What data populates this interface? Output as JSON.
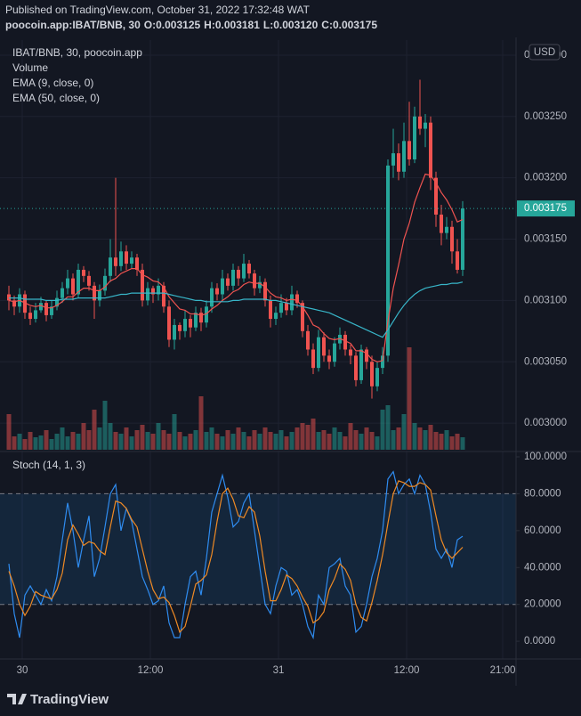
{
  "header": {
    "published": "Published on TradingView.com, October 31, 2022 17:32:48 WAT",
    "symbol": "poocoin.app:IBAT/BNB, 30",
    "ohlc": [
      "O:0.003125",
      "H:0.003181",
      "L:0.003120",
      "C:0.003175"
    ]
  },
  "chart_data": [
    {
      "type": "candlestick",
      "title": "IBAT/BNB, 30, poocoin.app",
      "currency": "USD",
      "up_color": "#26a69a",
      "down_color": "#ef5350",
      "grid": true,
      "xlim": [
        -1.6667,
        95
      ],
      "xticks": [
        {
          "value": 2.5,
          "label": "30"
        },
        {
          "value": 26.5,
          "label": "12:00"
        },
        {
          "value": 50.5,
          "label": "31"
        },
        {
          "value": 74.5,
          "label": "12:00"
        },
        {
          "value": 92.5,
          "label": "21:00"
        }
      ],
      "ylim": [
        0.0029783,
        0.0033123
      ],
      "yticks": [
        {
          "value": 0.003,
          "label": "0.003000"
        },
        {
          "value": 0.00305,
          "label": "0.003050"
        },
        {
          "value": 0.0031,
          "label": "0.003100"
        },
        {
          "value": 0.00315,
          "label": "0.003150"
        },
        {
          "value": 0.0032,
          "label": "0.003200"
        },
        {
          "value": 0.00325,
          "label": "0.003250"
        },
        {
          "value": 0.0033,
          "label": "0.003300"
        }
      ],
      "last_price_label": "0.003175",
      "candles": [
        [
          0.003105,
          0.003112,
          0.003092,
          0.0031
        ],
        [
          0.0031,
          0.003104,
          0.003088,
          0.003095
        ],
        [
          0.003095,
          0.00311,
          0.00309,
          0.003105
        ],
        [
          0.003105,
          0.003108,
          0.003085,
          0.00309
        ],
        [
          0.00309,
          0.003095,
          0.00308,
          0.003085
        ],
        [
          0.003085,
          0.003098,
          0.003082,
          0.003092
        ],
        [
          0.003092,
          0.003103,
          0.00309,
          0.003098
        ],
        [
          0.003098,
          0.0031,
          0.003083,
          0.003088
        ],
        [
          0.003088,
          0.0031,
          0.003085,
          0.003095
        ],
        [
          0.003095,
          0.003108,
          0.003092,
          0.003102
        ],
        [
          0.003102,
          0.003115,
          0.003098,
          0.00311
        ],
        [
          0.00311,
          0.003125,
          0.003105,
          0.003118
        ],
        [
          0.003118,
          0.003122,
          0.0031,
          0.003105
        ],
        [
          0.003105,
          0.00313,
          0.003102,
          0.003125
        ],
        [
          0.003125,
          0.003128,
          0.003115,
          0.00312
        ],
        [
          0.00312,
          0.003124,
          0.003108,
          0.003112
        ],
        [
          0.003112,
          0.003115,
          0.003085,
          0.0031
        ],
        [
          0.0031,
          0.003113,
          0.003095,
          0.003108
        ],
        [
          0.003108,
          0.003126,
          0.003104,
          0.00312
        ],
        [
          0.00312,
          0.00315,
          0.003115,
          0.003135
        ],
        [
          0.003135,
          0.0032,
          0.00312,
          0.003128
        ],
        [
          0.003128,
          0.003148,
          0.003124,
          0.00314
        ],
        [
          0.00314,
          0.003145,
          0.003125,
          0.00313
        ],
        [
          0.00313,
          0.00314,
          0.003126,
          0.003135
        ],
        [
          0.003135,
          0.003138,
          0.00312,
          0.003125
        ],
        [
          0.003125,
          0.00313,
          0.003095,
          0.0031
        ],
        [
          0.0031,
          0.003115,
          0.003096,
          0.00311
        ],
        [
          0.00311,
          0.003112,
          0.003098,
          0.003105
        ],
        [
          0.003105,
          0.003118,
          0.0031,
          0.003112
        ],
        [
          0.003112,
          0.003115,
          0.00309,
          0.003095
        ],
        [
          0.003095,
          0.0031,
          0.003062,
          0.003068
        ],
        [
          0.003068,
          0.003085,
          0.00306,
          0.00308
        ],
        [
          0.00308,
          0.003082,
          0.003068,
          0.003075
        ],
        [
          0.003075,
          0.003092,
          0.00307,
          0.003085
        ],
        [
          0.003085,
          0.003088,
          0.00307,
          0.003078
        ],
        [
          0.003078,
          0.003095,
          0.003075,
          0.00309
        ],
        [
          0.00309,
          0.003094,
          0.003075,
          0.003082
        ],
        [
          0.003082,
          0.0031,
          0.003078,
          0.003095
        ],
        [
          0.003095,
          0.003115,
          0.00309,
          0.00311
        ],
        [
          0.00311,
          0.003114,
          0.0031,
          0.003105
        ],
        [
          0.003105,
          0.003125,
          0.0031,
          0.003118
        ],
        [
          0.003118,
          0.003122,
          0.003108,
          0.003112
        ],
        [
          0.003112,
          0.00313,
          0.003108,
          0.003125
        ],
        [
          0.003125,
          0.003128,
          0.003112,
          0.003118
        ],
        [
          0.003118,
          0.003138,
          0.003115,
          0.00313
        ],
        [
          0.00313,
          0.003133,
          0.003118,
          0.003122
        ],
        [
          0.003122,
          0.003125,
          0.003104,
          0.00311
        ],
        [
          0.00311,
          0.00312,
          0.003106,
          0.003115
        ],
        [
          0.003115,
          0.003118,
          0.003095,
          0.0031
        ],
        [
          0.0031,
          0.003104,
          0.003078,
          0.003085
        ],
        [
          0.003085,
          0.003095,
          0.00308,
          0.00309
        ],
        [
          0.00309,
          0.003105,
          0.003086,
          0.003098
        ],
        [
          0.003098,
          0.003102,
          0.003088,
          0.003092
        ],
        [
          0.003092,
          0.003112,
          0.003088,
          0.003105
        ],
        [
          0.003105,
          0.003108,
          0.003094,
          0.003098
        ],
        [
          0.003098,
          0.0031,
          0.00307,
          0.003075
        ],
        [
          0.003075,
          0.00308,
          0.003055,
          0.00306
        ],
        [
          0.00306,
          0.003065,
          0.00304,
          0.003045
        ],
        [
          0.003045,
          0.003076,
          0.003042,
          0.00307
        ],
        [
          0.00307,
          0.003074,
          0.00305,
          0.003055
        ],
        [
          0.003055,
          0.00306,
          0.003044,
          0.00305
        ],
        [
          0.00305,
          0.00307,
          0.003046,
          0.003065
        ],
        [
          0.003065,
          0.003078,
          0.00306,
          0.003072
        ],
        [
          0.003072,
          0.003075,
          0.003055,
          0.00306
        ],
        [
          0.00306,
          0.003064,
          0.003048,
          0.003055
        ],
        [
          0.003055,
          0.003058,
          0.00303,
          0.003035
        ],
        [
          0.003035,
          0.003064,
          0.003032,
          0.00306
        ],
        [
          0.00306,
          0.003062,
          0.003044,
          0.00305
        ],
        [
          0.00305,
          0.003055,
          0.00302,
          0.00303
        ],
        [
          0.00303,
          0.00305,
          0.003026,
          0.003045
        ],
        [
          0.003045,
          0.003062,
          0.00304,
          0.003055
        ],
        [
          0.003055,
          0.003215,
          0.00305,
          0.00321
        ],
        [
          0.00321,
          0.00324,
          0.0032,
          0.00322
        ],
        [
          0.00322,
          0.003228,
          0.003198,
          0.003205
        ],
        [
          0.003205,
          0.003245,
          0.0032,
          0.00323
        ],
        [
          0.00323,
          0.003262,
          0.00321,
          0.003215
        ],
        [
          0.003215,
          0.003258,
          0.003212,
          0.00325
        ],
        [
          0.00325,
          0.00328,
          0.003235,
          0.00324
        ],
        [
          0.00324,
          0.003252,
          0.003225,
          0.003245
        ],
        [
          0.003245,
          0.00325,
          0.00319,
          0.0032
        ],
        [
          0.0032,
          0.003205,
          0.00316,
          0.00317
        ],
        [
          0.00317,
          0.003178,
          0.003145,
          0.003155
        ],
        [
          0.003155,
          0.003168,
          0.00315,
          0.00316
        ],
        [
          0.00316,
          0.003165,
          0.00313,
          0.00314
        ],
        [
          0.00314,
          0.00315,
          0.003122,
          0.003125
        ],
        [
          0.003125,
          0.003181,
          0.00312,
          0.003175
        ]
      ],
      "volume": {
        "name": "Volume",
        "values": [
          40,
          15,
          18,
          12,
          20,
          14,
          16,
          22,
          12,
          18,
          25,
          15,
          20,
          18,
          30,
          22,
          45,
          25,
          55,
          30,
          20,
          18,
          25,
          15,
          22,
          28,
          20,
          18,
          30,
          22,
          18,
          40,
          20,
          15,
          18,
          22,
          60,
          20,
          25,
          18,
          15,
          22,
          18,
          25,
          20,
          15,
          22,
          18,
          25,
          20,
          18,
          22,
          15,
          20,
          25,
          30,
          28,
          35,
          20,
          22,
          18,
          25,
          20,
          15,
          30,
          22,
          18,
          25,
          20,
          15,
          45,
          50,
          22,
          25,
          40,
          115,
          30,
          25,
          22,
          28,
          20,
          18,
          22,
          15,
          18,
          14
        ]
      },
      "series": [
        {
          "name": "EMA (9, close, 0)",
          "color": "#f05350",
          "values": [
            0.0031,
            0.003099,
            0.0031,
            0.003098,
            0.003096,
            0.003095,
            0.003096,
            0.003094,
            0.003094,
            0.003096,
            0.003099,
            0.003103,
            0.003103,
            0.003107,
            0.00311,
            0.00311,
            0.003108,
            0.003108,
            0.003111,
            0.003116,
            0.003118,
            0.003122,
            0.003124,
            0.003126,
            0.003126,
            0.003121,
            0.003119,
            0.003116,
            0.003115,
            0.003111,
            0.003103,
            0.003098,
            0.003093,
            0.003092,
            0.003089,
            0.003089,
            0.003088,
            0.003089,
            0.003093,
            0.003096,
            0.0031,
            0.003103,
            0.003107,
            0.003109,
            0.003113,
            0.003115,
            0.003114,
            0.003114,
            0.003111,
            0.003106,
            0.003103,
            0.003102,
            0.0031,
            0.003101,
            0.0031,
            0.003095,
            0.003088,
            0.00308,
            0.003078,
            0.003073,
            0.003069,
            0.003068,
            0.003069,
            0.003067,
            0.003065,
            0.003059,
            0.003059,
            0.003057,
            0.003052,
            0.00305,
            0.003051,
            0.003083,
            0.00311,
            0.003129,
            0.00315,
            0.003163,
            0.00318,
            0.003192,
            0.003203,
            0.003202,
            0.003196,
            0.003188,
            0.003182,
            0.003174,
            0.003164,
            0.003166
          ]
        },
        {
          "name": "EMA (50, close, 0)",
          "color": "#38b6c9",
          "values": [
            0.003102,
            0.003102,
            0.003102,
            0.003101,
            0.003101,
            0.003101,
            0.003101,
            0.0031,
            0.0031,
            0.0031,
            0.003101,
            0.003101,
            0.003101,
            0.003102,
            0.003102,
            0.003102,
            0.003102,
            0.003102,
            0.003102,
            0.003103,
            0.003104,
            0.003105,
            0.003105,
            0.003106,
            0.003106,
            0.003106,
            0.003106,
            0.003106,
            0.003106,
            0.003106,
            0.003105,
            0.003104,
            0.003103,
            0.003102,
            0.003101,
            0.0031,
            0.0031,
            0.003099,
            0.003099,
            0.003099,
            0.003099,
            0.003099,
            0.0031,
            0.0031,
            0.003101,
            0.003101,
            0.003101,
            0.003101,
            0.003101,
            0.0031,
            0.0031,
            0.003099,
            0.003098,
            0.003097,
            0.003096,
            0.003095,
            0.003094,
            0.003093,
            0.003092,
            0.003091,
            0.00309,
            0.003088,
            0.003086,
            0.003084,
            0.003082,
            0.00308,
            0.003078,
            0.003076,
            0.003074,
            0.003072,
            0.00307,
            0.003076,
            0.003083,
            0.00309,
            0.003096,
            0.003101,
            0.003105,
            0.003108,
            0.00311,
            0.003111,
            0.003112,
            0.003113,
            0.003113,
            0.003114,
            0.003114,
            0.003115
          ]
        }
      ]
    },
    {
      "type": "line",
      "title": "Stoch (14, 1, 3)",
      "ylim": [
        -9.6,
        102.9
      ],
      "yticks": [
        {
          "value": 0,
          "label": "0.0000"
        },
        {
          "value": 20,
          "label": "20.0000"
        },
        {
          "value": 40,
          "label": "40.0000"
        },
        {
          "value": 60,
          "label": "60.0000"
        },
        {
          "value": 80,
          "label": "80.0000"
        },
        {
          "value": 100,
          "label": "100.0000"
        }
      ],
      "bands": [
        20,
        80
      ],
      "band_color": "rgba(33,150,243,0.12)",
      "series": [
        {
          "color": "#2f8cf0",
          "values": [
            42,
            15,
            2,
            25,
            30,
            25,
            20,
            28,
            22,
            35,
            55,
            75,
            60,
            40,
            55,
            68,
            35,
            45,
            62,
            80,
            85,
            60,
            72,
            65,
            50,
            35,
            28,
            20,
            22,
            30,
            10,
            2,
            2,
            20,
            35,
            38,
            25,
            45,
            70,
            80,
            90,
            78,
            62,
            65,
            75,
            80,
            60,
            40,
            20,
            15,
            30,
            40,
            38,
            25,
            28,
            20,
            8,
            2,
            25,
            20,
            40,
            42,
            45,
            30,
            25,
            5,
            8,
            20,
            35,
            45,
            60,
            88,
            92,
            80,
            85,
            88,
            80,
            90,
            85,
            70,
            50,
            45,
            50,
            40,
            55,
            57
          ]
        },
        {
          "color": "#f08a24",
          "values": [
            38,
            30,
            20,
            14,
            19,
            27,
            25,
            24,
            23,
            28,
            37,
            55,
            63,
            58,
            52,
            54,
            53,
            49,
            47,
            62,
            76,
            75,
            72,
            66,
            62,
            50,
            38,
            28,
            23,
            24,
            21,
            14,
            5,
            8,
            19,
            31,
            33,
            36,
            47,
            65,
            80,
            83,
            77,
            68,
            67,
            73,
            70,
            57,
            38,
            22,
            22,
            28,
            36,
            34,
            30,
            24,
            19,
            10,
            12,
            16,
            28,
            34,
            42,
            39,
            33,
            20,
            13,
            11,
            21,
            33,
            47,
            64,
            80,
            87,
            86,
            84,
            84,
            86,
            85,
            82,
            68,
            55,
            48,
            45,
            48,
            51
          ]
        }
      ]
    }
  ],
  "footer": {
    "logo": "TradingView"
  }
}
